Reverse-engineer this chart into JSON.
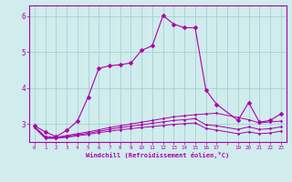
{
  "background_color": "#d0ecec",
  "grid_color": "#a0cccc",
  "line_color": "#aa00aa",
  "xlabel": "Windchill (Refroidissement éolien,°C)",
  "ylim": [
    2.5,
    6.3
  ],
  "xlim": [
    -0.5,
    23.5
  ],
  "yticks": [
    3,
    4,
    5,
    6
  ],
  "xtick_labels": [
    "0",
    "1",
    "2",
    "3",
    "4",
    "5",
    "6",
    "7",
    "8",
    "9",
    "10",
    "11",
    "12",
    "13",
    "14",
    "15",
    "16",
    "17",
    "",
    "19",
    "20",
    "21",
    "22",
    "23"
  ],
  "xtick_positions": [
    0,
    1,
    2,
    3,
    4,
    5,
    6,
    7,
    8,
    9,
    10,
    11,
    12,
    13,
    14,
    15,
    16,
    17,
    18,
    19,
    20,
    21,
    22,
    23
  ],
  "series1_x": [
    0,
    1,
    2,
    3,
    4,
    5,
    6,
    7,
    8,
    9,
    10,
    11,
    12,
    13,
    14,
    15,
    16,
    17,
    19,
    20,
    21,
    22,
    23
  ],
  "series1_y": [
    2.95,
    2.78,
    2.65,
    2.82,
    3.08,
    3.75,
    4.55,
    4.62,
    4.65,
    4.7,
    5.05,
    5.18,
    6.02,
    5.78,
    5.68,
    5.68,
    3.95,
    3.55,
    3.1,
    3.6,
    3.05,
    3.1,
    3.28
  ],
  "series2_x": [
    0,
    1,
    2,
    3,
    4,
    5,
    6,
    7,
    8,
    9,
    10,
    11,
    12,
    13,
    14,
    15,
    16,
    17,
    19,
    20,
    21,
    22,
    23
  ],
  "series2_y": [
    2.93,
    2.65,
    2.63,
    2.68,
    2.73,
    2.78,
    2.84,
    2.9,
    2.95,
    3.0,
    3.05,
    3.1,
    3.15,
    3.2,
    3.23,
    3.26,
    3.28,
    3.3,
    3.18,
    3.12,
    3.03,
    3.06,
    3.08
  ],
  "series3_x": [
    0,
    1,
    2,
    3,
    4,
    5,
    6,
    7,
    8,
    9,
    10,
    11,
    12,
    13,
    14,
    15,
    16,
    17,
    19,
    20,
    21,
    22,
    23
  ],
  "series3_y": [
    2.91,
    2.62,
    2.61,
    2.65,
    2.7,
    2.74,
    2.8,
    2.85,
    2.9,
    2.94,
    2.98,
    3.02,
    3.06,
    3.1,
    3.12,
    3.15,
    2.98,
    2.95,
    2.85,
    2.92,
    2.85,
    2.87,
    2.92
  ],
  "series4_x": [
    0,
    1,
    2,
    3,
    4,
    5,
    6,
    7,
    8,
    9,
    10,
    11,
    12,
    13,
    14,
    15,
    16,
    17,
    19,
    20,
    21,
    22,
    23
  ],
  "series4_y": [
    2.9,
    2.6,
    2.6,
    2.63,
    2.67,
    2.71,
    2.76,
    2.8,
    2.84,
    2.87,
    2.9,
    2.93,
    2.96,
    2.99,
    3.01,
    3.03,
    2.88,
    2.83,
    2.73,
    2.78,
    2.73,
    2.75,
    2.8
  ]
}
